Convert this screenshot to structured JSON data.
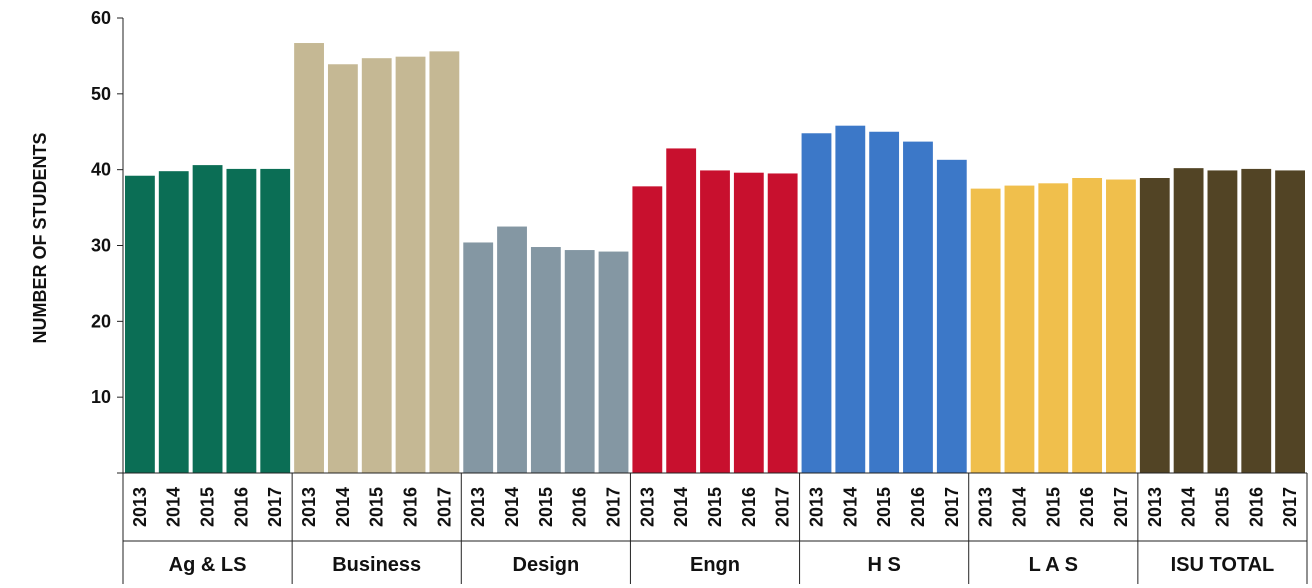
{
  "chart_data": {
    "type": "bar",
    "ylabel": "NUMBER OF STUDENTS",
    "ylim": [
      0,
      60
    ],
    "yticks": [
      10,
      20,
      30,
      40,
      50,
      60
    ],
    "years": [
      "2013",
      "2014",
      "2015",
      "2016",
      "2017"
    ],
    "groups": [
      {
        "name": "Ag & LS",
        "color": "#0b6e55",
        "values": [
          39.2,
          39.8,
          40.6,
          40.1,
          40.1
        ]
      },
      {
        "name": "Business",
        "color": "#c5b894",
        "values": [
          56.7,
          53.9,
          54.7,
          54.9,
          55.6
        ]
      },
      {
        "name": "Design",
        "color": "#8497a3",
        "values": [
          30.4,
          32.5,
          29.8,
          29.4,
          29.2
        ]
      },
      {
        "name": "Engn",
        "color": "#c8102e",
        "values": [
          37.8,
          42.8,
          39.9,
          39.6,
          39.5
        ]
      },
      {
        "name": "H S",
        "color": "#3c78c8",
        "values": [
          44.8,
          45.8,
          45.0,
          43.7,
          41.3
        ]
      },
      {
        "name": "L A S",
        "color": "#f0bf4c",
        "values": [
          37.5,
          37.9,
          38.2,
          38.9,
          38.7
        ]
      },
      {
        "name": "ISU TOTAL",
        "color": "#524425",
        "values": [
          38.9,
          40.2,
          39.9,
          40.1,
          39.9
        ]
      }
    ]
  }
}
